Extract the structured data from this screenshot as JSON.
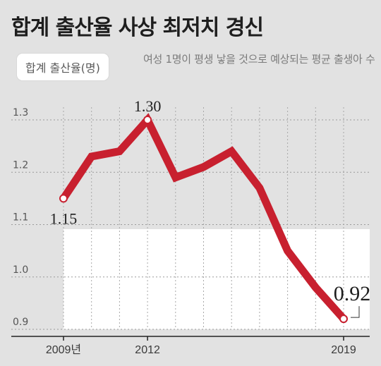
{
  "title": "합계 출산율 사상 최저치 경신",
  "legend": {
    "label": "합계 출산율(명)",
    "description": "여성 1명이 평생 낳을 것으로 예상되는 평균 출생아 수"
  },
  "colors": {
    "line": "#c8202f",
    "background": "#e2e2e2",
    "plot_area": "#ffffff"
  },
  "chart_data": {
    "type": "line",
    "title": "합계 출산율 사상 최저치 경신",
    "xlabel": "",
    "ylabel": "합계 출산율(명)",
    "x": [
      2009,
      2010,
      2011,
      2012,
      2013,
      2014,
      2015,
      2016,
      2017,
      2018,
      2019
    ],
    "values": [
      1.15,
      1.23,
      1.24,
      1.3,
      1.19,
      1.21,
      1.24,
      1.17,
      1.05,
      0.98,
      0.92
    ],
    "ylim": [
      0.9,
      1.3
    ],
    "yticks": [
      "1.3",
      "1.2",
      "1.1",
      "1.0",
      "0.9"
    ],
    "xtick_labels": [
      {
        "x": 2009,
        "label": "2009년"
      },
      {
        "x": 2012,
        "label": "2012"
      },
      {
        "x": 2019,
        "label": "2019"
      }
    ],
    "data_labels": [
      {
        "x": 2009,
        "label": "1.15"
      },
      {
        "x": 2012,
        "label": "1.30"
      },
      {
        "x": 2019,
        "label": "0.92"
      }
    ],
    "grid": true
  }
}
